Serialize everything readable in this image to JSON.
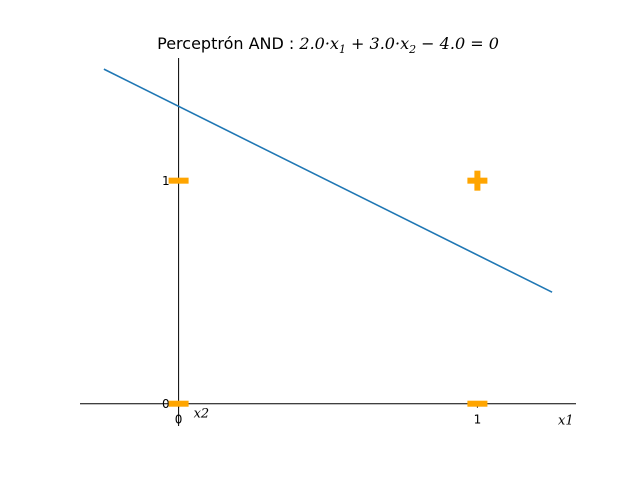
{
  "chart_data": {
    "type": "line",
    "title": {
      "prefix": "Perceptrón AND : ",
      "parts": [
        {
          "t": "2.0·",
          "style": "normal"
        },
        {
          "t": "x",
          "style": "italic"
        },
        {
          "t": "1",
          "style": "sub"
        },
        {
          "t": " + 3.0·",
          "style": "normal"
        },
        {
          "t": "x",
          "style": "italic"
        },
        {
          "t": "2",
          "style": "sub"
        },
        {
          "t": " − 4.0 = 0",
          "style": "normal"
        }
      ]
    },
    "xlabel": "x1",
    "ylabel": "x2",
    "xlim": [
      -0.33,
      1.33
    ],
    "ylim": [
      -0.1,
      1.55
    ],
    "xticks": [
      {
        "value": 0,
        "label": "0"
      },
      {
        "value": 1,
        "label": "1"
      }
    ],
    "yticks": [
      {
        "value": 0,
        "label": "0"
      },
      {
        "value": 1,
        "label": "1"
      }
    ],
    "grid": false,
    "decision_line": {
      "weights": [
        2.0,
        3.0
      ],
      "bias": -4.0,
      "x_range": [
        -0.25,
        1.25
      ],
      "color": "#1f77b4"
    },
    "points": [
      {
        "x": 0,
        "y": 0,
        "label": 0,
        "marker": "minus"
      },
      {
        "x": 0,
        "y": 1,
        "label": 0,
        "marker": "minus"
      },
      {
        "x": 1,
        "y": 0,
        "label": 0,
        "marker": "minus"
      },
      {
        "x": 1,
        "y": 1,
        "label": 1,
        "marker": "plus"
      }
    ],
    "marker_color": "#ffa500"
  }
}
